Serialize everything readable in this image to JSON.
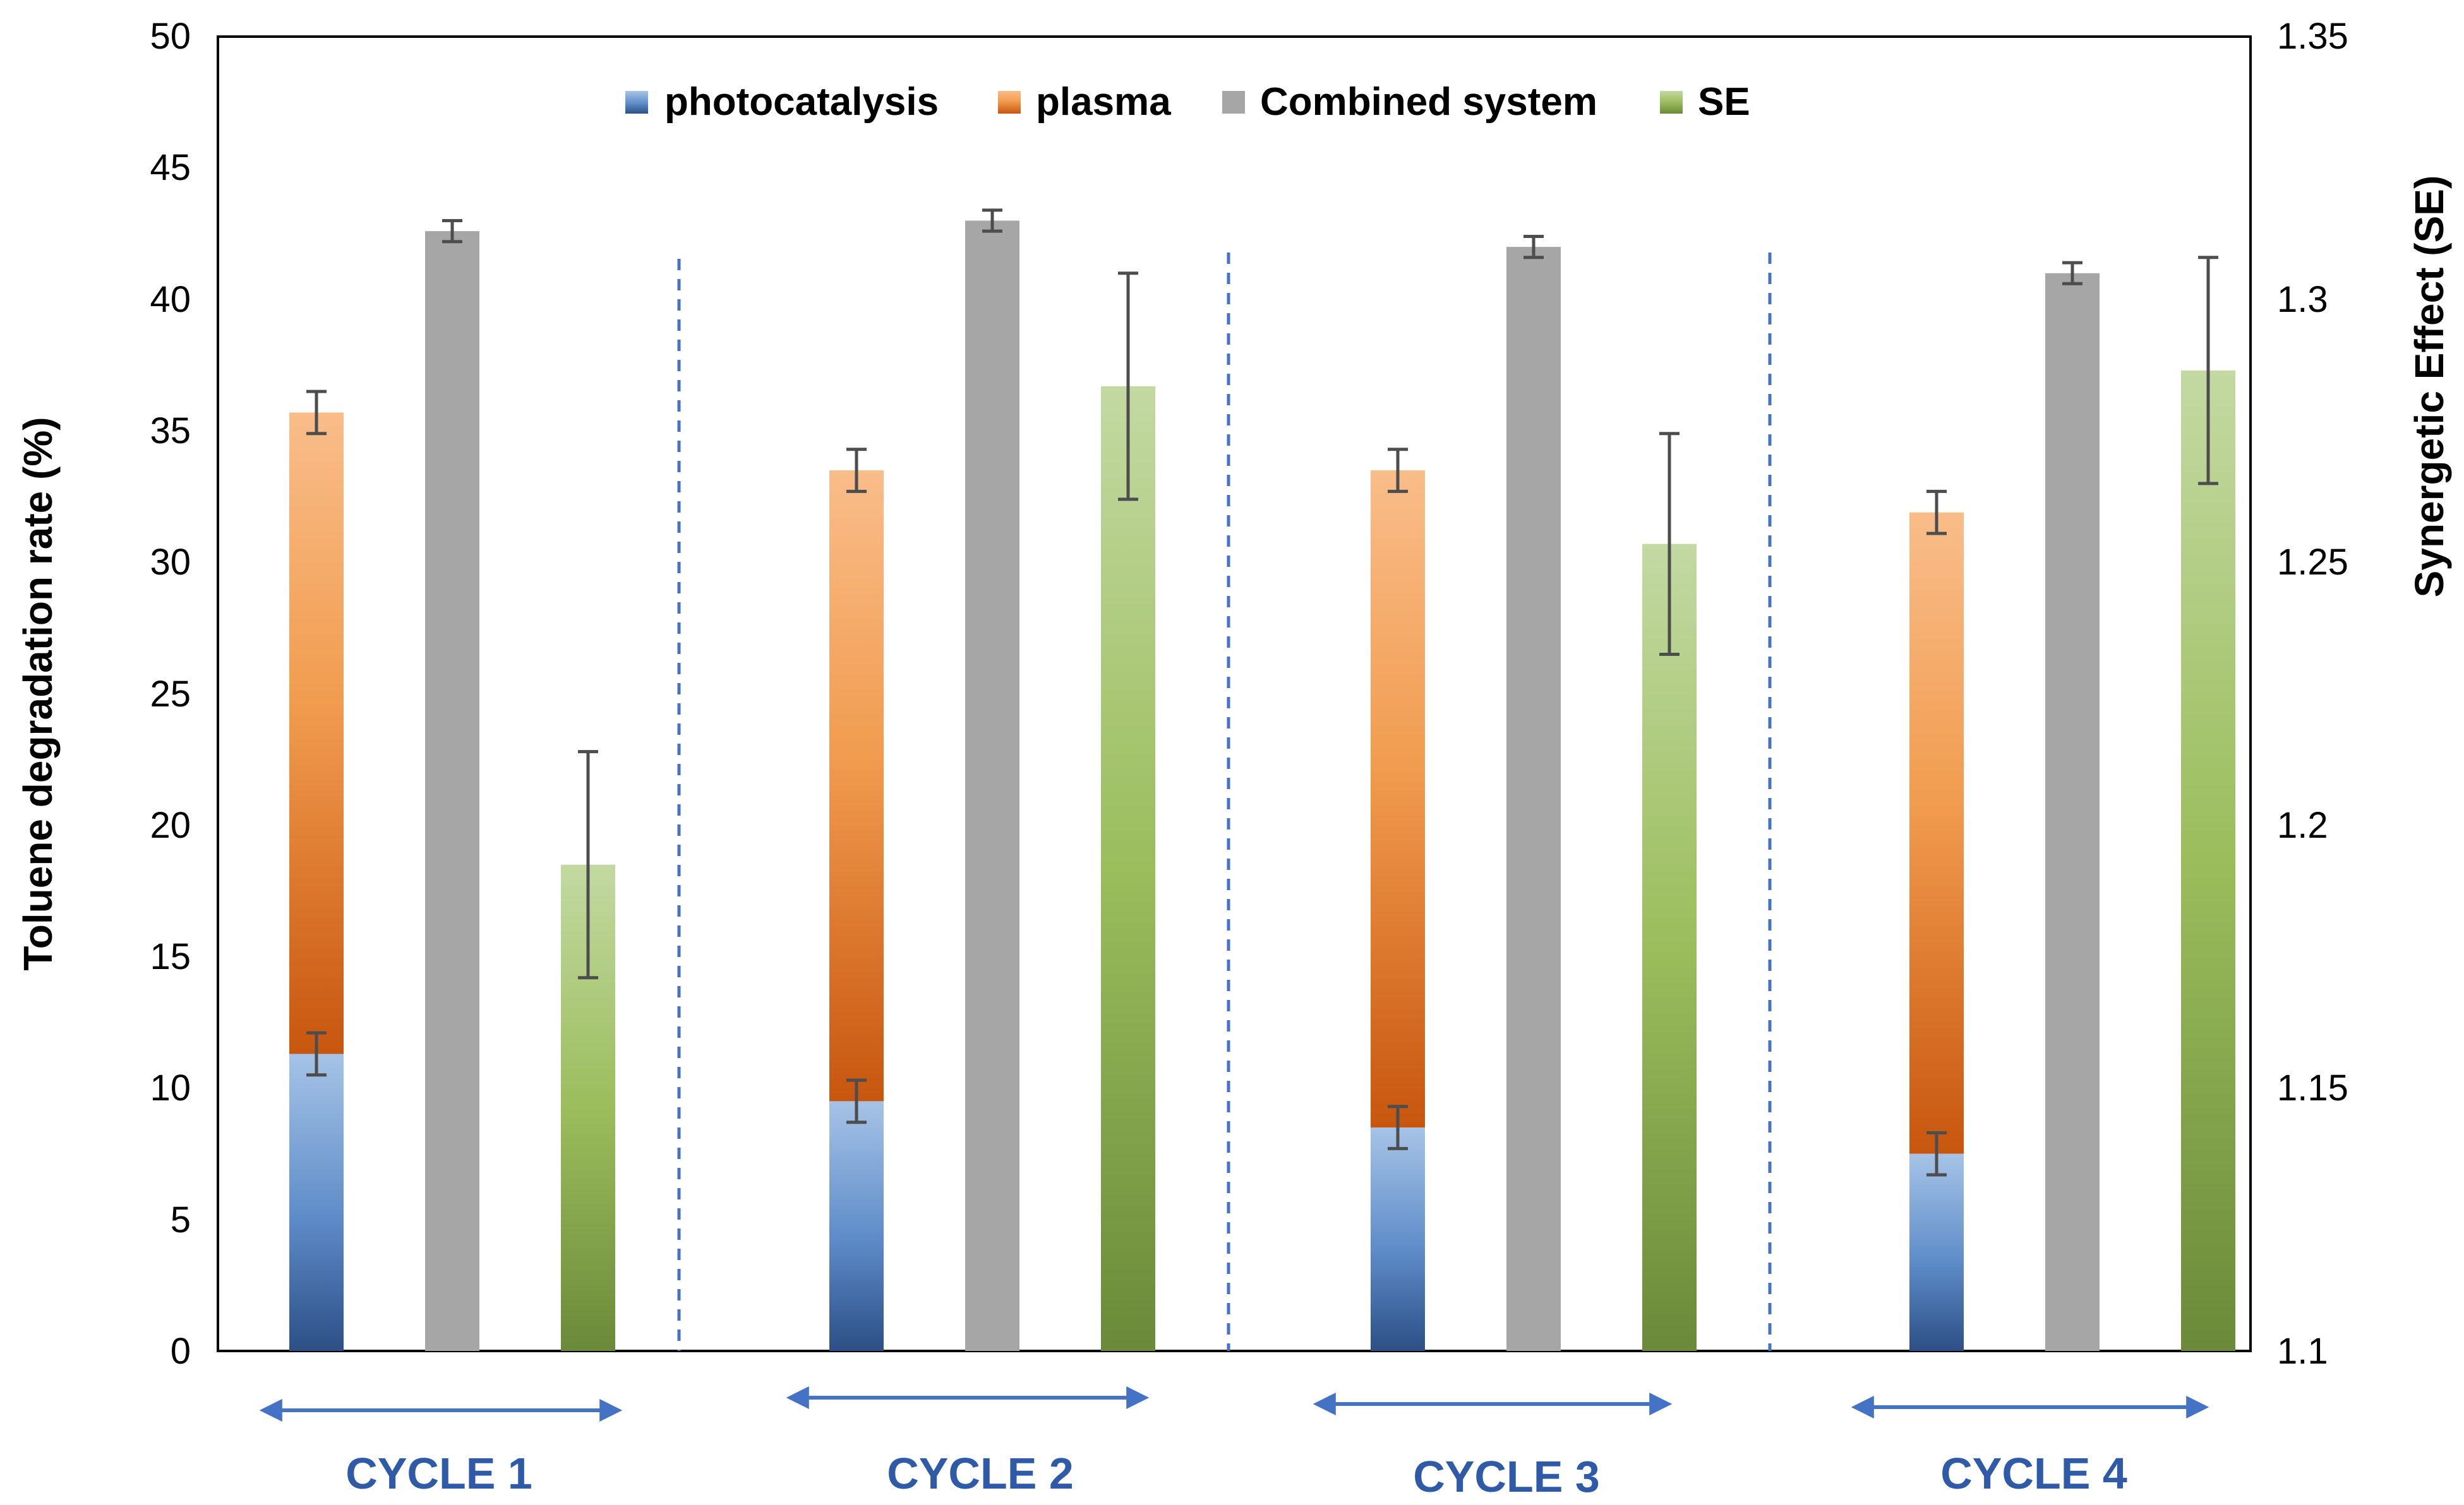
{
  "chart_data": {
    "type": "bar",
    "title": "",
    "ylabel": "Toluene degradation rate (%)",
    "y2label": "Synergetic Effect (SE)",
    "ylim": [
      0,
      50
    ],
    "y2lim": [
      1.1,
      1.35
    ],
    "yticks": [
      "0",
      "5",
      "10",
      "15",
      "20",
      "25",
      "30",
      "35",
      "40",
      "45",
      "50"
    ],
    "y2ticks": [
      "1.1",
      "1.15",
      "1.2",
      "1.25",
      "1.3",
      "1.35"
    ],
    "categories": [
      "CYCLE 1",
      "CYCLE 2",
      "CYCLE 3",
      "CYCLE 4"
    ],
    "legend_position": "top-center",
    "series": [
      {
        "name": "photocatalysis",
        "axis": "left",
        "stacked_base": true,
        "values": [
          11.3,
          9.5,
          8.5,
          7.5
        ],
        "errors": [
          0.8,
          0.8,
          0.8,
          0.8
        ]
      },
      {
        "name": "plasma",
        "axis": "left",
        "stacked_on": "photocatalysis",
        "values": [
          24.4,
          24.0,
          25.0,
          24.4
        ],
        "totals": [
          35.7,
          33.5,
          33.5,
          31.9
        ],
        "errors": [
          0.8,
          0.8,
          0.8,
          0.8
        ]
      },
      {
        "name": "Combined system",
        "axis": "left",
        "values": [
          42.6,
          43.0,
          42.0,
          41.0
        ],
        "errors": [
          0.4,
          0.4,
          0.4,
          0.4
        ]
      },
      {
        "name": "SE",
        "axis": "right",
        "values": [
          1.1925,
          1.2835,
          1.2535,
          1.2865
        ],
        "errors": [
          0.0215,
          0.0215,
          0.021,
          0.0215
        ]
      }
    ]
  },
  "colors": {
    "photocatalysis_top": "#a6c3e6",
    "photocatalysis_bottom": "#2d4f86",
    "plasma_top": "#f9bd8a",
    "plasma_mid": "#f19c4f",
    "plasma_bottom": "#c8560f",
    "combined": "#a6a6a6",
    "se_top": "#c3d9a2",
    "se_mid": "#9bbd5c",
    "se_bottom": "#6b8a3a",
    "error_bar": "#4d4d4d",
    "divider": "#4472c4",
    "cycle_label": "#2f5aa8",
    "arrow": "#4472c4"
  }
}
